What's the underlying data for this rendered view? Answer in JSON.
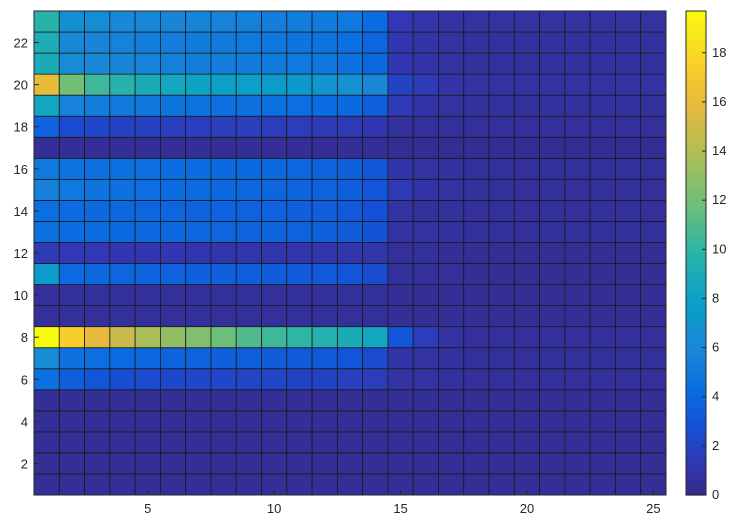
{
  "chart_data": {
    "type": "heatmap",
    "title": "",
    "xlabel": "",
    "ylabel": "",
    "xlim": [
      0.5,
      25.5
    ],
    "ylim": [
      0.5,
      23.5
    ],
    "x_ticks": [
      5,
      10,
      15,
      20,
      25
    ],
    "y_ticks": [
      2,
      4,
      6,
      8,
      10,
      12,
      14,
      16,
      18,
      20,
      22
    ],
    "colormap": "parula",
    "colorbar": {
      "min": 0,
      "max": 19.7,
      "ticks": [
        0,
        2,
        4,
        6,
        8,
        10,
        12,
        14,
        16,
        18
      ]
    },
    "cell_edges": "#1a1a1a",
    "x": [
      1,
      2,
      3,
      4,
      5,
      6,
      7,
      8,
      9,
      10,
      11,
      12,
      13,
      14,
      15,
      16,
      17,
      18,
      19,
      20,
      21,
      22,
      23,
      24,
      25
    ],
    "y": [
      1,
      2,
      3,
      4,
      5,
      6,
      7,
      8,
      9,
      10,
      11,
      12,
      13,
      14,
      15,
      16,
      17,
      18,
      19,
      20,
      21,
      22,
      23
    ],
    "z": [
      [
        0.5,
        0.5,
        0.5,
        0.5,
        0.5,
        0.5,
        0.5,
        0.5,
        0.5,
        0.5,
        0.5,
        0.5,
        0.5,
        0.5,
        0.5,
        0.5,
        0.5,
        0.5,
        0.5,
        0.5,
        0.5,
        0.5,
        0.5,
        0.5,
        0.5
      ],
      [
        0.5,
        0.5,
        0.5,
        0.5,
        0.5,
        0.5,
        0.5,
        0.5,
        0.5,
        0.5,
        0.5,
        0.5,
        0.5,
        0.5,
        0.5,
        0.5,
        0.5,
        0.5,
        0.5,
        0.5,
        0.5,
        0.5,
        0.5,
        0.5,
        0.5
      ],
      [
        0.5,
        0.5,
        0.5,
        0.5,
        0.5,
        0.5,
        0.5,
        0.5,
        0.5,
        0.5,
        0.5,
        0.5,
        0.5,
        0.5,
        0.5,
        0.5,
        0.5,
        0.5,
        0.5,
        0.5,
        0.5,
        0.5,
        0.5,
        0.5,
        0.5
      ],
      [
        0.5,
        0.5,
        0.5,
        0.5,
        0.5,
        0.5,
        0.5,
        0.5,
        0.5,
        0.5,
        0.5,
        0.5,
        0.5,
        0.5,
        0.5,
        0.5,
        0.5,
        0.5,
        0.5,
        0.5,
        0.5,
        0.5,
        0.5,
        0.5,
        0.5
      ],
      [
        0.5,
        0.5,
        0.5,
        0.5,
        0.5,
        0.5,
        0.5,
        0.5,
        0.5,
        0.5,
        0.5,
        0.5,
        0.5,
        0.5,
        0.5,
        0.5,
        0.5,
        0.5,
        0.5,
        0.5,
        0.5,
        0.5,
        0.5,
        0.5,
        0.5
      ],
      [
        4.5,
        3.5,
        3.0,
        2.6,
        2.4,
        2.3,
        2.2,
        2.2,
        2.1,
        2.1,
        2.0,
        2.0,
        1.9,
        1.6,
        0.9,
        0.8,
        0.7,
        0.6,
        0.6,
        0.6,
        0.6,
        0.6,
        0.6,
        0.6,
        0.6
      ],
      [
        6.2,
        4.6,
        4.4,
        4.2,
        4.0,
        3.8,
        3.7,
        3.6,
        3.5,
        3.4,
        3.3,
        3.2,
        3.0,
        2.4,
        1.0,
        0.8,
        0.7,
        0.6,
        0.6,
        0.6,
        0.6,
        0.6,
        0.6,
        0.6,
        0.6
      ],
      [
        19.7,
        17.5,
        15.8,
        14.8,
        13.8,
        13.0,
        12.5,
        11.8,
        11.0,
        10.5,
        10.0,
        9.5,
        9.0,
        8.5,
        3.0,
        1.6,
        0.9,
        0.6,
        0.6,
        0.6,
        0.6,
        0.6,
        0.6,
        0.6,
        0.6
      ],
      [
        0.6,
        0.6,
        0.6,
        0.6,
        0.6,
        0.6,
        0.6,
        0.6,
        0.6,
        0.6,
        0.6,
        0.6,
        0.6,
        0.6,
        0.5,
        0.5,
        0.5,
        0.5,
        0.5,
        0.5,
        0.5,
        0.5,
        0.5,
        0.5,
        0.5
      ],
      [
        0.6,
        0.6,
        0.6,
        0.6,
        0.6,
        0.6,
        0.6,
        0.6,
        0.6,
        0.6,
        0.6,
        0.6,
        0.6,
        0.6,
        0.5,
        0.5,
        0.5,
        0.5,
        0.5,
        0.5,
        0.5,
        0.5,
        0.5,
        0.5,
        0.5
      ],
      [
        7.5,
        4.2,
        4.0,
        3.9,
        3.8,
        3.7,
        3.6,
        3.6,
        3.5,
        3.4,
        3.3,
        3.2,
        3.0,
        2.5,
        0.7,
        0.6,
        0.6,
        0.5,
        0.5,
        0.5,
        0.5,
        0.5,
        0.5,
        0.5,
        0.5
      ],
      [
        1.5,
        1.4,
        1.4,
        1.3,
        1.3,
        1.3,
        1.2,
        1.2,
        1.2,
        1.2,
        1.2,
        1.2,
        1.2,
        1.1,
        0.6,
        0.6,
        0.5,
        0.5,
        0.5,
        0.5,
        0.5,
        0.5,
        0.5,
        0.5,
        0.5
      ],
      [
        4.5,
        4.3,
        4.2,
        4.1,
        4.0,
        4.0,
        3.9,
        3.9,
        3.8,
        3.8,
        3.7,
        3.6,
        3.4,
        2.9,
        0.9,
        0.8,
        0.7,
        0.6,
        0.6,
        0.6,
        0.6,
        0.6,
        0.6,
        0.6,
        0.6
      ],
      [
        4.4,
        4.2,
        4.1,
        4.0,
        3.9,
        3.9,
        3.8,
        3.8,
        3.7,
        3.7,
        3.6,
        3.5,
        3.3,
        2.8,
        0.8,
        0.7,
        0.7,
        0.6,
        0.6,
        0.6,
        0.6,
        0.6,
        0.6,
        0.6,
        0.6
      ],
      [
        5.5,
        5.0,
        4.8,
        4.6,
        4.4,
        4.3,
        4.2,
        4.1,
        4.0,
        3.9,
        3.8,
        3.7,
        3.5,
        3.0,
        1.5,
        1.0,
        0.8,
        0.7,
        0.6,
        0.6,
        0.6,
        0.6,
        0.6,
        0.6,
        0.6
      ],
      [
        5.0,
        4.8,
        4.6,
        4.5,
        4.4,
        4.3,
        4.2,
        4.1,
        4.1,
        4.0,
        3.9,
        3.8,
        3.6,
        3.1,
        1.0,
        0.8,
        0.7,
        0.6,
        0.6,
        0.6,
        0.6,
        0.6,
        0.6,
        0.6,
        0.6
      ],
      [
        0.5,
        0.5,
        0.5,
        0.5,
        0.5,
        0.5,
        0.5,
        0.5,
        0.5,
        0.5,
        0.5,
        0.5,
        0.5,
        0.5,
        0.4,
        0.4,
        0.4,
        0.4,
        0.4,
        0.4,
        0.4,
        0.4,
        0.4,
        0.4,
        0.4
      ],
      [
        3.8,
        2.4,
        2.2,
        2.0,
        1.9,
        1.8,
        1.8,
        1.7,
        1.7,
        1.6,
        1.6,
        1.5,
        1.5,
        1.3,
        0.7,
        0.6,
        0.6,
        0.6,
        0.6,
        0.6,
        0.6,
        0.6,
        0.6,
        0.6,
        0.6
      ],
      [
        8.5,
        5.6,
        5.3,
        5.1,
        4.9,
        4.8,
        4.7,
        4.6,
        4.6,
        4.5,
        4.4,
        4.3,
        4.1,
        3.5,
        1.5,
        1.0,
        0.8,
        0.7,
        0.7,
        0.7,
        0.7,
        0.7,
        0.7,
        0.7,
        0.7
      ],
      [
        16.0,
        12.0,
        10.5,
        9.8,
        9.0,
        8.5,
        8.2,
        8.0,
        7.8,
        7.6,
        7.3,
        7.0,
        6.7,
        6.0,
        2.0,
        1.5,
        1.0,
        0.8,
        0.8,
        0.8,
        0.8,
        0.8,
        0.8,
        0.8,
        0.8
      ],
      [
        9.0,
        6.3,
        6.0,
        5.8,
        5.6,
        5.5,
        5.4,
        5.3,
        5.2,
        5.1,
        5.0,
        4.9,
        4.6,
        4.0,
        1.3,
        1.0,
        0.8,
        0.7,
        0.7,
        0.7,
        0.7,
        0.7,
        0.7,
        0.7,
        0.7
      ],
      [
        9.2,
        6.0,
        5.8,
        5.6,
        5.4,
        5.3,
        5.2,
        5.1,
        5.0,
        4.9,
        4.8,
        4.7,
        4.5,
        3.9,
        1.3,
        1.0,
        0.8,
        0.7,
        0.7,
        0.7,
        0.7,
        0.7,
        0.7,
        0.7,
        0.7
      ],
      [
        9.8,
        6.6,
        6.3,
        6.1,
        5.9,
        5.8,
        5.7,
        5.6,
        5.5,
        5.4,
        5.3,
        5.2,
        5.0,
        4.2,
        1.4,
        1.1,
        0.9,
        0.8,
        0.8,
        0.8,
        0.8,
        0.8,
        0.8,
        0.8,
        0.8
      ]
    ]
  }
}
